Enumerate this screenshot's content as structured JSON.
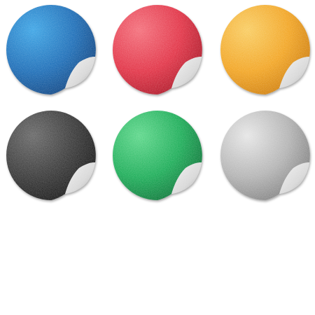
{
  "stickers": [
    {
      "color_name": "blue",
      "base": "#1f6fb8",
      "light": "#3fa6e6",
      "dark": "#0f3f7a",
      "icon": "blue-peel-sticker-icon"
    },
    {
      "color_name": "red",
      "base": "#e23548",
      "light": "#f4707c",
      "dark": "#a51424",
      "icon": "red-peel-sticker-icon"
    },
    {
      "color_name": "orange",
      "base": "#f2a626",
      "light": "#f9cd63",
      "dark": "#c9780a",
      "icon": "orange-peel-sticker-icon"
    },
    {
      "color_name": "black",
      "base": "#3a3a3a",
      "light": "#6a6a6a",
      "dark": "#141414",
      "icon": "black-peel-sticker-icon"
    },
    {
      "color_name": "green",
      "base": "#1fae5a",
      "light": "#5fd88c",
      "dark": "#0b6d34",
      "icon": "green-peel-sticker-icon"
    },
    {
      "color_name": "silver",
      "base": "#b4b4b4",
      "light": "#e6e6e6",
      "dark": "#7a7a7a",
      "icon": "silver-peel-sticker-icon"
    }
  ],
  "peel_color": "#d8d8d8",
  "background_color": "#ffffff"
}
